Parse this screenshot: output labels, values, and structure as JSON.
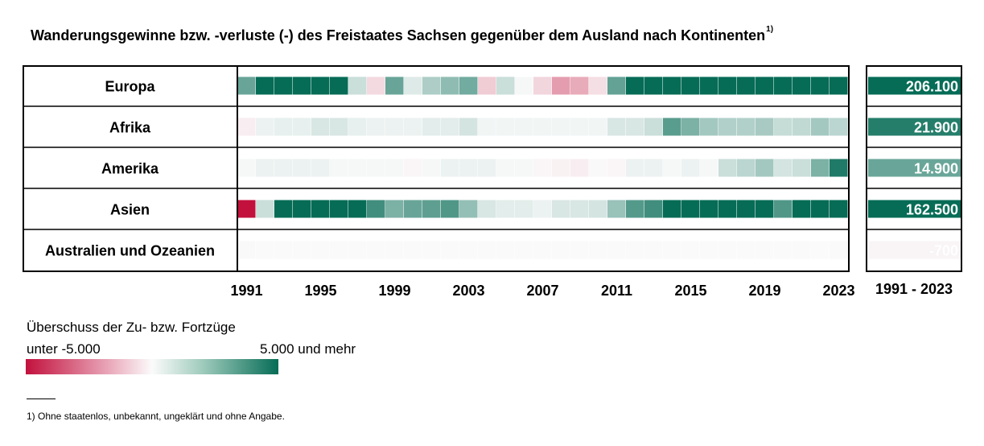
{
  "title": "Wanderungsgewinne bzw. -verluste (-) des Freistaates Sachsen gegenüber dem Ausland nach Kontinenten",
  "title_footnote_mark": "1)",
  "legend": {
    "title": "Überschuss der Zu- bzw. Fortzüge",
    "min_label": "unter -5.000",
    "max_label": "5.000 und mehr"
  },
  "footnote": "1) Ohne staatenlos, unbekannt, ungeklärt und ohne Angabe.",
  "colors": {
    "negative": "#c2113d",
    "neutral": "#fbfbfb",
    "positive": "#066c56",
    "border": "#000000"
  },
  "chart_data": {
    "type": "heatmap",
    "x": [
      1991,
      1992,
      1993,
      1994,
      1995,
      1996,
      1997,
      1998,
      1999,
      2000,
      2001,
      2002,
      2003,
      2004,
      2005,
      2006,
      2007,
      2008,
      2009,
      2010,
      2011,
      2012,
      2013,
      2014,
      2015,
      2016,
      2017,
      2018,
      2019,
      2020,
      2021,
      2022,
      2023
    ],
    "x_tick_labels": [
      "1991",
      "1995",
      "1999",
      "2003",
      "2007",
      "2011",
      "2015",
      "2019",
      "2023"
    ],
    "color_range": [
      -5000,
      5000
    ],
    "series": [
      {
        "name": "Europa",
        "total": "206.100",
        "total_value": 206100,
        "values": [
          3000,
          5000,
          5000,
          5000,
          5000,
          5000,
          1000,
          -700,
          3000,
          600,
          1600,
          2200,
          2800,
          -1000,
          1000,
          100,
          -800,
          -2000,
          -1700,
          -600,
          3100,
          5000,
          5000,
          5000,
          5000,
          5000,
          5000,
          5000,
          5000,
          5000,
          5000,
          5000,
          5000
        ]
      },
      {
        "name": "Afrika",
        "total": "21.900",
        "total_value": 21900,
        "values": [
          -300,
          300,
          400,
          400,
          700,
          700,
          400,
          300,
          300,
          300,
          500,
          500,
          800,
          200,
          200,
          200,
          200,
          200,
          200,
          200,
          700,
          700,
          1000,
          3300,
          2600,
          1800,
          1500,
          1500,
          1700,
          1100,
          1200,
          1800,
          1300
        ]
      },
      {
        "name": "Amerika",
        "total": "14.900",
        "total_value": 14900,
        "values": [
          100,
          300,
          300,
          300,
          300,
          100,
          100,
          100,
          100,
          -100,
          100,
          300,
          300,
          300,
          100,
          100,
          -100,
          -200,
          -300,
          -50,
          -100,
          300,
          300,
          100,
          300,
          100,
          1000,
          1300,
          1800,
          800,
          1000,
          2600,
          4500
        ]
      },
      {
        "name": "Asien",
        "total": "162.500",
        "total_value": 162500,
        "values": [
          -5000,
          1000,
          5000,
          5000,
          5000,
          5000,
          5000,
          3800,
          2600,
          3000,
          3200,
          3500,
          2100,
          700,
          500,
          500,
          300,
          700,
          700,
          800,
          2000,
          3400,
          3800,
          5000,
          5000,
          5000,
          5000,
          5000,
          5000,
          3500,
          5000,
          5000,
          5000
        ]
      },
      {
        "name": "Australien und Ozeanien",
        "total": "-700",
        "total_value": -700,
        "values": [
          -50,
          -30,
          -20,
          -20,
          -20,
          -20,
          -20,
          -20,
          -20,
          -20,
          -20,
          -20,
          -20,
          -20,
          -20,
          -20,
          -20,
          -20,
          -20,
          -20,
          -20,
          -20,
          -20,
          -20,
          -20,
          -20,
          -20,
          -20,
          -20,
          -20,
          -20,
          0,
          -30
        ]
      }
    ],
    "totals_header": "1991 - 2023",
    "totals_color_range": [
      -25000,
      25000
    ]
  }
}
